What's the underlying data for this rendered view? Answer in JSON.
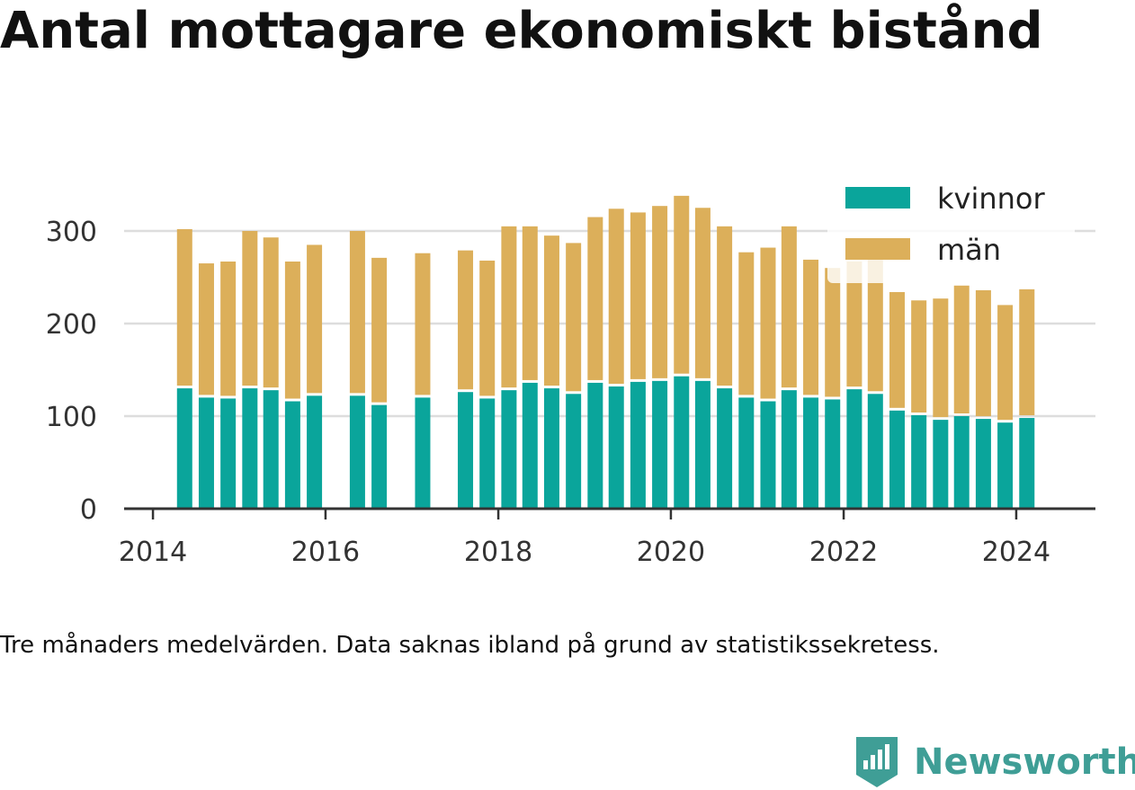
{
  "title": "Antal mottagare ekonomiskt bistånd",
  "note": "Tre månaders medelvärden. Data saknas ibland på grund av statistikssekretess.",
  "brand": {
    "name": "Newsworthy",
    "logo_icon": "newsworthy-chart-logo-icon"
  },
  "colors": {
    "kvinnor": "#0aa59b",
    "man": "#dcaf5a",
    "grid": "#dddddd",
    "axis": "#333333"
  },
  "chart_data": {
    "type": "bar",
    "stacked": true,
    "x": [
      "2014-05",
      "2014-08",
      "2014-11",
      "2015-02",
      "2015-05",
      "2015-08",
      "2015-11",
      "2016-02",
      "2016-05",
      "2016-08",
      "2016-11",
      "2017-02",
      "2017-05",
      "2017-08",
      "2017-11",
      "2018-02",
      "2018-05",
      "2018-08",
      "2018-11",
      "2019-02",
      "2019-05",
      "2019-08",
      "2019-11",
      "2020-02",
      "2020-05",
      "2020-08",
      "2020-11",
      "2021-02",
      "2021-05",
      "2021-08",
      "2021-11",
      "2022-02",
      "2022-05",
      "2022-08",
      "2022-11",
      "2023-02",
      "2023-05",
      "2023-08",
      "2023-11",
      "2024-02"
    ],
    "series": [
      {
        "name": "kvinnor",
        "values": [
          130,
          120,
          119,
          130,
          128,
          116,
          122,
          null,
          122,
          112,
          null,
          120,
          null,
          126,
          119,
          128,
          136,
          130,
          124,
          136,
          132,
          137,
          138,
          143,
          138,
          130,
          120,
          116,
          128,
          120,
          118,
          129,
          124,
          106,
          101,
          96,
          100,
          97,
          93,
          98
        ]
      },
      {
        "name": "män",
        "values": [
          172,
          145,
          148,
          170,
          165,
          151,
          163,
          null,
          178,
          159,
          null,
          156,
          null,
          153,
          149,
          177,
          169,
          165,
          163,
          179,
          192,
          183,
          189,
          195,
          187,
          175,
          157,
          166,
          177,
          149,
          142,
          138,
          147,
          128,
          124,
          131,
          141,
          139,
          127,
          139
        ]
      }
    ],
    "xticks": [
      "2014",
      "2016",
      "2018",
      "2020",
      "2022",
      "2024"
    ],
    "yticks": [
      0,
      100,
      200,
      300
    ],
    "ylim": [
      0,
      350
    ],
    "xlim": [
      "2013-09-01",
      "2024-12-01"
    ],
    "grid": "horizontal",
    "legend": "top-right"
  }
}
